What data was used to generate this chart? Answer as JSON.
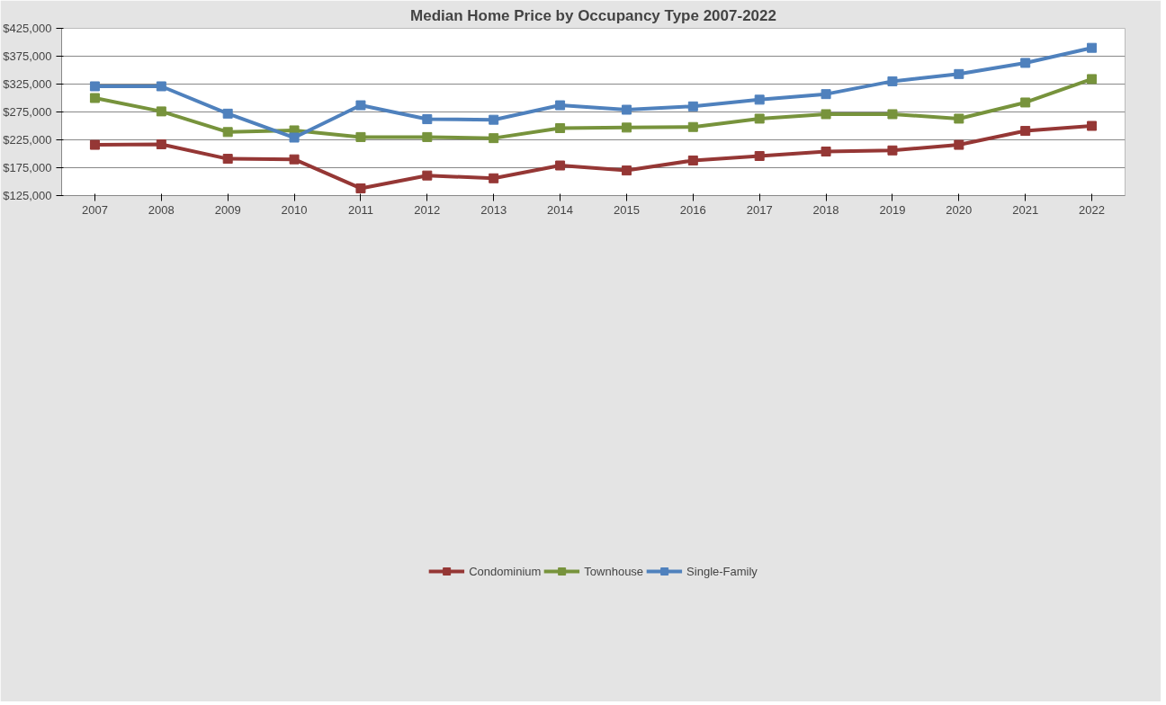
{
  "chart_data": {
    "type": "line",
    "title": "Median Home Price by Occupancy Type 2007-2022",
    "categories": [
      "2007",
      "2008",
      "2009",
      "2010",
      "2011",
      "2012",
      "2013",
      "2014",
      "2015",
      "2016",
      "2017",
      "2018",
      "2019",
      "2020",
      "2021",
      "2022"
    ],
    "series": [
      {
        "name": "Condominium",
        "color": "#953735",
        "values": [
          216000,
          217000,
          191000,
          190000,
          138000,
          161000,
          156000,
          179000,
          170000,
          188000,
          196000,
          204000,
          206000,
          216000,
          241000,
          250000
        ]
      },
      {
        "name": "Townhouse",
        "color": "#77933c",
        "values": [
          300000,
          276000,
          239000,
          242000,
          230000,
          230000,
          228000,
          246000,
          247000,
          248000,
          263000,
          271000,
          271000,
          263000,
          292000,
          334000
        ]
      },
      {
        "name": "Single-Family",
        "color": "#4f81bd",
        "values": [
          321000,
          321000,
          272000,
          229000,
          287000,
          262000,
          261000,
          287000,
          279000,
          285000,
          297000,
          307000,
          330000,
          343000,
          363000,
          390000
        ]
      }
    ],
    "ylim": [
      125000,
      425000
    ],
    "yticks": [
      {
        "value": 125000,
        "label": "$125,000"
      },
      {
        "value": 175000,
        "label": "$175,000"
      },
      {
        "value": 225000,
        "label": "$225,000"
      },
      {
        "value": 275000,
        "label": "$275,000"
      },
      {
        "value": 325000,
        "label": "$325,000"
      },
      {
        "value": 375000,
        "label": "$375,000"
      },
      {
        "value": 425000,
        "label": "$425,000"
      }
    ],
    "grid": "y",
    "legend": "bottom",
    "marker": "square",
    "line_style": "solid"
  }
}
